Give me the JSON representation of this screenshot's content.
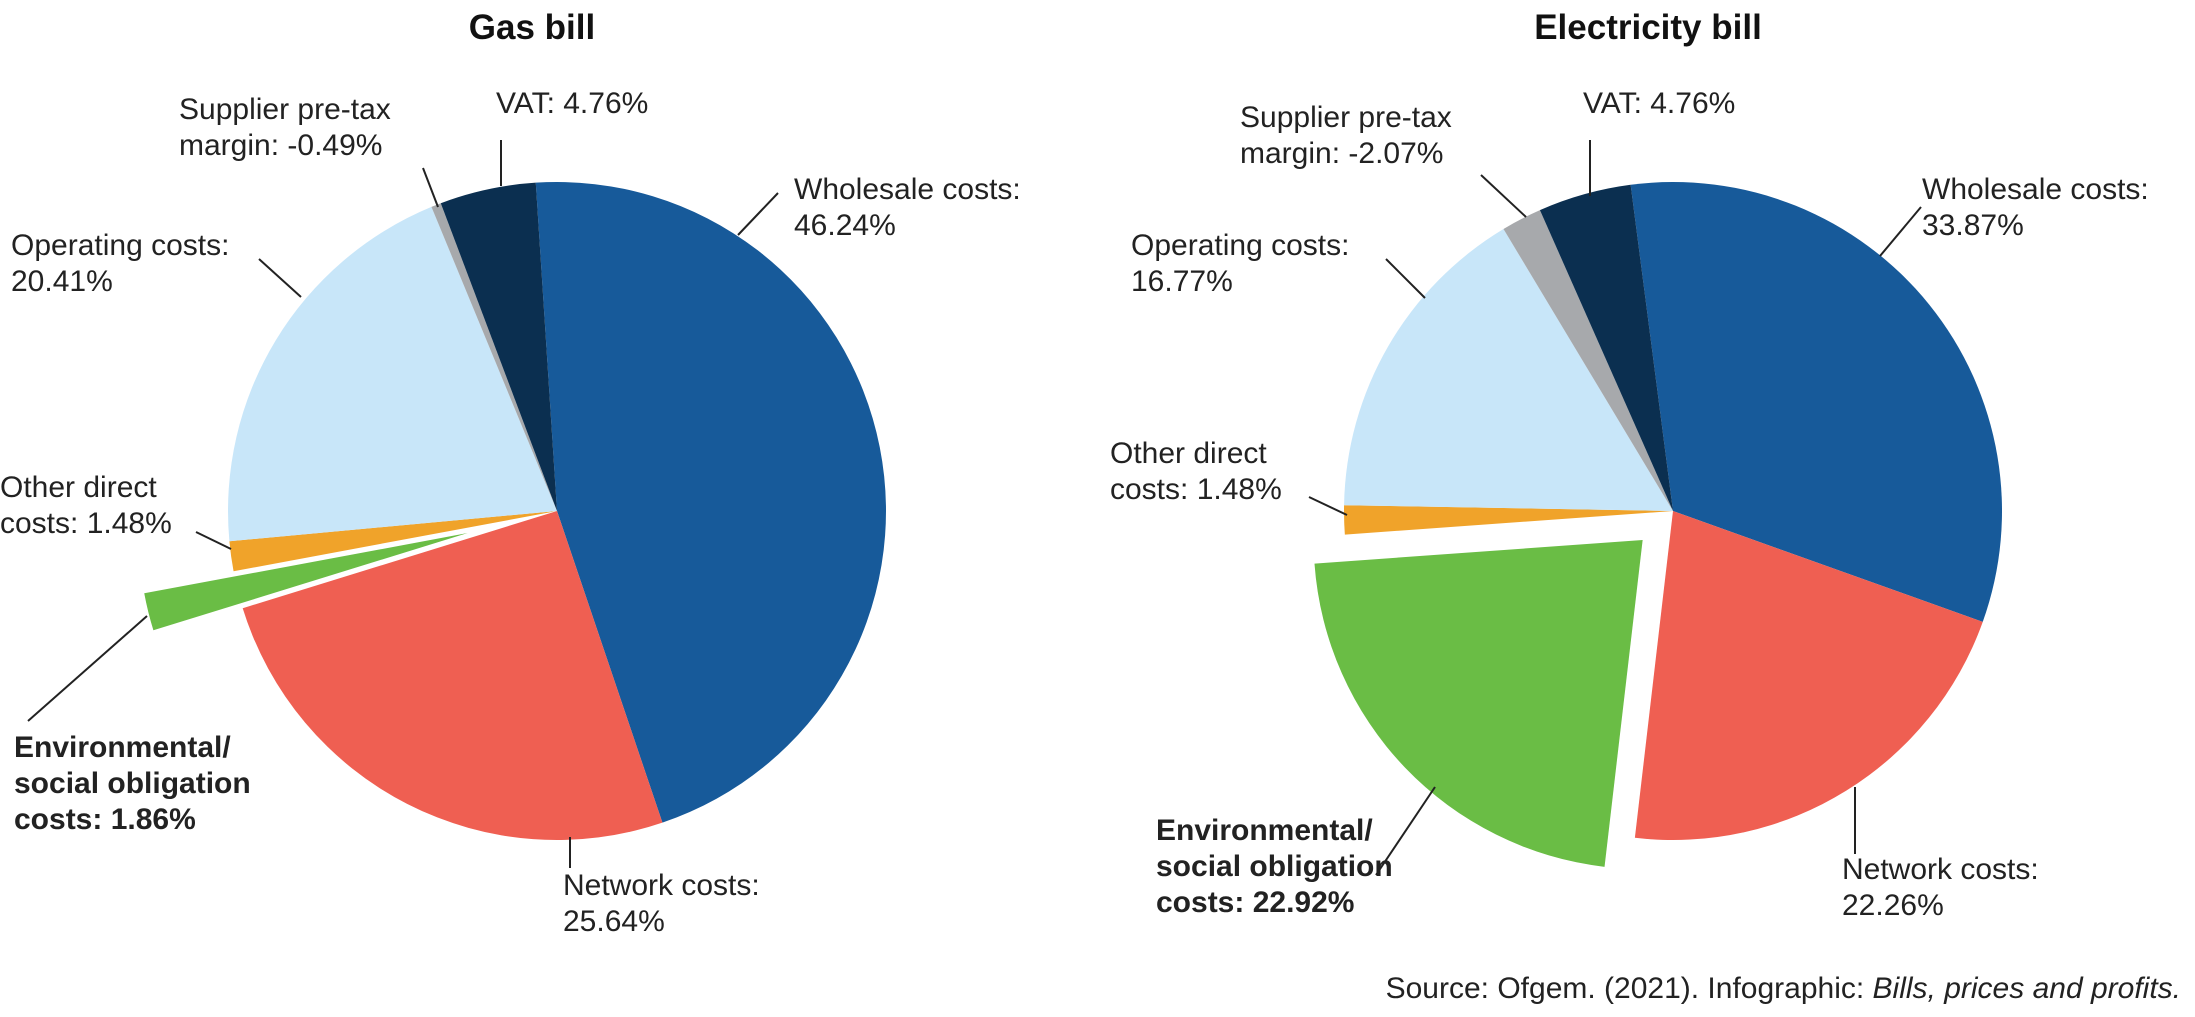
{
  "chart_data": [
    {
      "type": "pie",
      "title": "Gas bill",
      "categories": [
        "Wholesale costs:",
        "Network costs:",
        "Environmental/ social obligation costs:",
        "Other direct costs:",
        "Operating costs:",
        "Supplier pre-tax margin:",
        "VAT:"
      ],
      "values": [
        46.24,
        25.64,
        1.86,
        1.48,
        20.41,
        -0.49,
        4.76
      ],
      "value_labels": [
        "46.24%",
        "25.64%",
        "1.86%",
        "1.48%",
        "20.41%",
        "-0.49%",
        "4.76%"
      ],
      "colors": [
        "#175a9a",
        "#ef5f52",
        "#6abd45",
        "#f0a32a",
        "#c8e6f9",
        "#a7a9ac",
        "#0b2f50"
      ],
      "exploded": 2
    },
    {
      "type": "pie",
      "title": "Electricity bill",
      "categories": [
        "Wholesale costs:",
        "Network costs:",
        "Environmental/ social obligation costs:",
        "Other direct costs:",
        "Operating costs:",
        "Supplier pre-tax margin:",
        "VAT:"
      ],
      "values": [
        33.87,
        22.26,
        22.92,
        1.48,
        16.77,
        -2.07,
        4.76
      ],
      "value_labels": [
        "33.87%",
        "22.26%",
        "22.92%",
        "1.48%",
        "16.77%",
        "-2.07%",
        "4.76%"
      ],
      "colors": [
        "#175a9a",
        "#ef5f52",
        "#6abd45",
        "#f0a32a",
        "#c8e6f9",
        "#a7a9ac",
        "#0b2f50"
      ],
      "exploded": 2
    }
  ],
  "source": {
    "text": "Source: Ofgem. (2021). Infographic:",
    "title": "Bills, prices and profits."
  }
}
